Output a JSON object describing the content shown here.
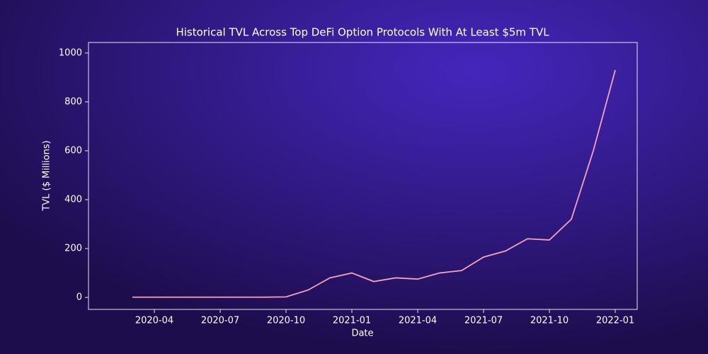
{
  "chart_data": {
    "type": "line",
    "title": "Historical TVL Across Top DeFi Option Protocols With At Least $5m TVL",
    "xlabel": "Date",
    "ylabel": "TVL ($ Millions)",
    "x": [
      "2020-03",
      "2020-04",
      "2020-05",
      "2020-06",
      "2020-07",
      "2020-08",
      "2020-09",
      "2020-10",
      "2020-11",
      "2020-12",
      "2021-01",
      "2021-02",
      "2021-03",
      "2021-04",
      "2021-05",
      "2021-06",
      "2021-07",
      "2021-08",
      "2021-09",
      "2021-10",
      "2021-11",
      "2021-12",
      "2022-01"
    ],
    "series": [
      {
        "name": "TVL",
        "color": "#f4a3b8",
        "values": [
          1,
          1,
          1,
          1,
          1,
          1,
          1,
          2,
          30,
          80,
          100,
          65,
          80,
          75,
          100,
          110,
          165,
          190,
          240,
          235,
          320,
          600,
          930
        ]
      }
    ],
    "xlim": [
      "2020-01",
      "2022-02"
    ],
    "xticks": [
      "2020-04",
      "2020-07",
      "2020-10",
      "2021-01",
      "2021-04",
      "2021-07",
      "2021-10",
      "2022-01"
    ],
    "ylim": [
      -49,
      1043
    ],
    "yticks": [
      0,
      200,
      400,
      600,
      800,
      1000
    ]
  }
}
